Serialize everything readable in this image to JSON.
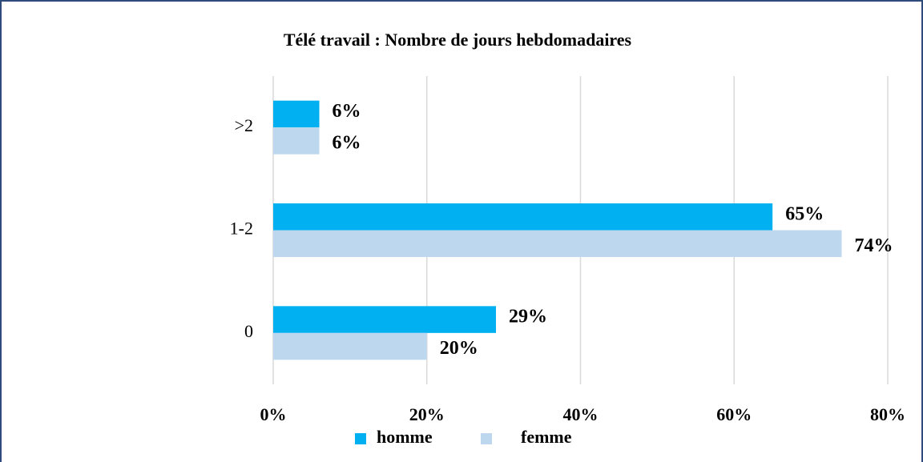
{
  "chart_data": {
    "type": "hbar",
    "title": "Télé travail : Nombre de jours hebdomadaires",
    "categories": [
      ">2",
      "1-2",
      "0"
    ],
    "series": [
      {
        "name": "homme",
        "color": "#00b0f0",
        "values": [
          6,
          65,
          29
        ],
        "value_labels": [
          "6%",
          "65%",
          "29%"
        ]
      },
      {
        "name": "femme",
        "color": "#bdd7ee",
        "values": [
          6,
          74,
          20
        ],
        "value_labels": [
          "6%",
          "74%",
          "20%"
        ]
      }
    ],
    "xlim": [
      0,
      80
    ],
    "xticks": [
      {
        "value": 0,
        "label": "0%"
      },
      {
        "value": 20,
        "label": "20%"
      },
      {
        "value": 40,
        "label": "40%"
      },
      {
        "value": 60,
        "label": "60%"
      },
      {
        "value": 80,
        "label": "80%"
      }
    ],
    "grid": true,
    "legend": "bottom"
  }
}
